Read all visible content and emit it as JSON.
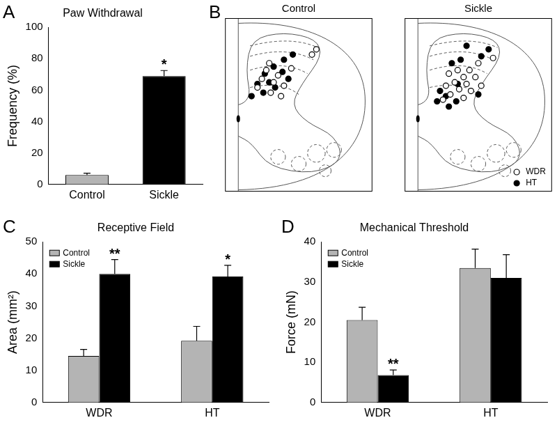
{
  "chart_data": [
    {
      "type": "bar",
      "label": "A",
      "title": "Paw Withdrawal",
      "y_label": "Frequency (%)",
      "categories": [
        "Control",
        "Sickle"
      ],
      "values": [
        6,
        69
      ],
      "errors": [
        1.2,
        3.5
      ],
      "colors": [
        "#b4b4b4",
        "#000000"
      ],
      "ylim": [
        0,
        100
      ],
      "yticks": [
        0,
        20,
        40,
        60,
        80,
        100
      ],
      "grid": false,
      "annotations": [
        {
          "category": "Sickle",
          "text": "*"
        }
      ]
    },
    {
      "type": "scatter",
      "label": "B",
      "title": "Control",
      "xlim": [
        0,
        100
      ],
      "ylim": [
        0,
        100
      ],
      "tick_labels": false,
      "grid": false,
      "series": [
        {
          "name": "WDR",
          "marker": "open_circle",
          "color": "#000000",
          "x": [
            62,
            59,
            30,
            28,
            36,
            25,
            33,
            40,
            22,
            31,
            38,
            45
          ],
          "values": [
            82,
            79,
            74,
            70,
            67,
            65,
            63,
            61,
            60,
            57,
            55,
            71
          ]
        },
        {
          "name": "HT",
          "marker": "filled_circle",
          "color": "#000000",
          "x": [
            46,
            33,
            39,
            27,
            30,
            22,
            34,
            26,
            18,
            43,
            40
          ],
          "values": [
            79,
            72,
            69,
            68,
            63,
            62,
            60,
            57,
            55,
            65,
            76
          ]
        }
      ]
    },
    {
      "type": "scatter",
      "title": "Sickle",
      "xlim": [
        0,
        100
      ],
      "ylim": [
        0,
        100
      ],
      "tick_labels": false,
      "grid": false,
      "legend": "lower right",
      "series": [
        {
          "name": "WDR",
          "marker": "open_circle",
          "color": "#000000",
          "x": [
            60,
            50,
            36,
            44,
            30,
            40,
            48,
            34,
            42,
            28,
            37,
            45,
            31,
            26,
            40,
            52
          ],
          "values": [
            77,
            74,
            70,
            70,
            68,
            66,
            66,
            63,
            62,
            61,
            59,
            58,
            56,
            53,
            54,
            61
          ]
        },
        {
          "name": "HT",
          "marker": "filled_circle",
          "color": "#000000",
          "x": [
            42,
            57,
            38,
            52,
            32,
            24,
            28,
            22,
            35,
            30,
            50,
            36
          ],
          "values": [
            84,
            82,
            76,
            78,
            74,
            58,
            55,
            52,
            52,
            49,
            56,
            62
          ]
        }
      ]
    },
    {
      "type": "bar",
      "label": "C",
      "title": "Receptive Field",
      "y_label": "Area (mm²)",
      "categories": [
        "WDR",
        "HT"
      ],
      "series": [
        {
          "name": "Control",
          "color": "#b4b4b4",
          "values": [
            14.5,
            19.2
          ],
          "errors": [
            2,
            4.5
          ]
        },
        {
          "name": "Sickle",
          "color": "#000000",
          "values": [
            40,
            39.2
          ],
          "errors": [
            4.5,
            3.5
          ]
        }
      ],
      "ylim": [
        0,
        50
      ],
      "yticks": [
        0,
        10,
        20,
        30,
        40,
        50
      ],
      "grid": false,
      "legend": "upper left",
      "annotations": [
        {
          "series": "Sickle",
          "category": "WDR",
          "text": "**"
        },
        {
          "series": "Sickle",
          "category": "HT",
          "text": "*"
        }
      ]
    },
    {
      "type": "bar",
      "label": "D",
      "title": "Mechanical Threshold",
      "y_label": "Force (mN)",
      "categories": [
        "WDR",
        "HT"
      ],
      "series": [
        {
          "name": "Control",
          "color": "#b4b4b4",
          "values": [
            20.5,
            33.5
          ],
          "errors": [
            3.2,
            4.7
          ]
        },
        {
          "name": "Sickle",
          "color": "#000000",
          "values": [
            6.8,
            31
          ],
          "errors": [
            1.3,
            5.8
          ]
        }
      ],
      "ylim": [
        0,
        40
      ],
      "yticks": [
        0,
        10,
        20,
        30,
        40
      ],
      "grid": false,
      "legend": "upper left",
      "annotations": [
        {
          "series": "Sickle",
          "category": "WDR",
          "text": "**"
        }
      ]
    }
  ]
}
